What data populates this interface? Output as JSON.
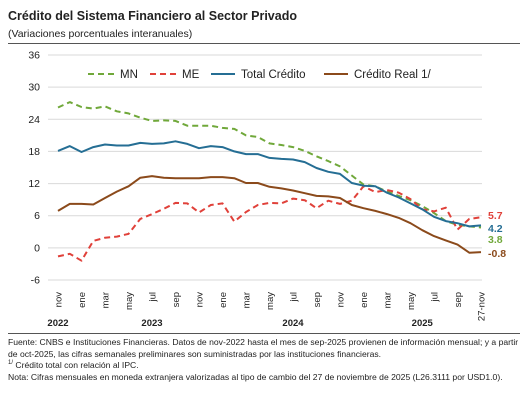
{
  "header": {
    "title": "Crédito del Sistema Financiero al Sector Privado",
    "subtitle": "(Variaciones porcentuales interanuales)"
  },
  "chart_data": {
    "type": "line",
    "title": "Crédito del Sistema Financiero al Sector Privado",
    "subtitle": "(Variaciones porcentuales interanuales)",
    "ylim": [
      -6,
      36
    ],
    "yticks": [
      36,
      30,
      24,
      18,
      12,
      6,
      0,
      -6
    ],
    "grid": true,
    "legend_position": "top",
    "x_tick_labels": [
      "nov",
      "ene",
      "mar",
      "may",
      "jul",
      "sep",
      "nov",
      "ene",
      "mar",
      "may",
      "jul",
      "sep",
      "nov",
      "ene",
      "mar",
      "may",
      "jul",
      "sep",
      "27-nov"
    ],
    "year_labels": [
      {
        "label": "2022",
        "at_month_index": 0
      },
      {
        "label": "2023",
        "at_month_index": 8
      },
      {
        "label": "2024",
        "at_month_index": 20
      },
      {
        "label": "2025",
        "at_month_index": 31
      }
    ],
    "months": [
      "nov-2022",
      "dic-2022",
      "ene-2023",
      "feb-2023",
      "mar-2023",
      "abr-2023",
      "may-2023",
      "jun-2023",
      "jul-2023",
      "ago-2023",
      "sep-2023",
      "oct-2023",
      "nov-2023",
      "dic-2023",
      "ene-2024",
      "feb-2024",
      "mar-2024",
      "abr-2024",
      "may-2024",
      "jun-2024",
      "jul-2024",
      "ago-2024",
      "sep-2024",
      "oct-2024",
      "nov-2024",
      "dic-2024",
      "ene-2025",
      "feb-2025",
      "mar-2025",
      "abr-2025",
      "may-2025",
      "jun-2025",
      "jul-2025",
      "ago-2025",
      "sep-2025",
      "oct-2025",
      "27-nov-2025"
    ],
    "series": [
      {
        "name": "MN",
        "color": "#70a83a",
        "dash": "dashed",
        "end_label": "3.8",
        "values": [
          26.2,
          27.2,
          26.3,
          26.0,
          26.4,
          25.5,
          25.1,
          24.3,
          23.7,
          23.8,
          23.7,
          22.8,
          22.8,
          22.8,
          22.4,
          22.2,
          21.0,
          20.7,
          19.5,
          19.2,
          18.8,
          18.1,
          17.1,
          16.2,
          15.2,
          13.5,
          11.8,
          11.5,
          10.5,
          9.7,
          8.9,
          7.8,
          6.5,
          5.0,
          4.3,
          4.0,
          3.8
        ]
      },
      {
        "name": "ME",
        "color": "#e0413a",
        "dash": "dashed",
        "end_label": "5.7",
        "values": [
          -1.6,
          -1.1,
          -2.4,
          1.3,
          1.9,
          2.1,
          2.6,
          5.4,
          6.3,
          7.3,
          8.4,
          8.3,
          6.6,
          8.0,
          8.3,
          4.9,
          6.7,
          8.0,
          8.4,
          8.3,
          9.2,
          8.9,
          7.4,
          8.8,
          8.2,
          8.8,
          11.5,
          10.4,
          10.8,
          10.3,
          9.1,
          7.2,
          6.8,
          7.5,
          3.4,
          5.4,
          5.7
        ]
      },
      {
        "name": "Total Crédito",
        "color": "#256e94",
        "dash": "solid",
        "end_label": "4.2",
        "values": [
          18.1,
          19.0,
          17.9,
          18.8,
          19.3,
          19.1,
          19.1,
          19.6,
          19.4,
          19.5,
          19.9,
          19.4,
          18.6,
          19.0,
          18.8,
          18.0,
          17.5,
          17.5,
          16.8,
          16.6,
          16.5,
          16.0,
          14.9,
          14.2,
          13.8,
          12.1,
          11.6,
          11.5,
          10.3,
          9.4,
          8.3,
          7.2,
          5.8,
          5.0,
          4.6,
          4.0,
          4.2
        ]
      },
      {
        "name": "Crédito Real 1/",
        "color": "#8b4a1b",
        "dash": "solid",
        "end_label": "-0.8",
        "values": [
          6.9,
          8.2,
          8.2,
          8.1,
          9.3,
          10.5,
          11.5,
          13.1,
          13.4,
          13.1,
          13.0,
          13.0,
          13.0,
          13.2,
          13.2,
          13.0,
          12.1,
          12.1,
          11.4,
          11.1,
          10.7,
          10.2,
          9.7,
          9.6,
          9.3,
          8.0,
          7.4,
          6.9,
          6.3,
          5.6,
          4.6,
          3.3,
          2.2,
          1.4,
          0.6,
          -0.9,
          -0.8
        ]
      }
    ]
  },
  "notes": {
    "source": "Fuente: CNBS e Instituciones Financieras. Datos de nov-2022 hasta el mes de sep-2025 provienen de información mensual; y a partir de oct-2025, las cifras semanales preliminares son suministradas por las instituciones financieras.",
    "footnote_mark": "1/",
    "footnote": "Crédito total con relación al IPC.",
    "note": "Nota: Cifras mensuales en moneda extranjera valorizadas al tipo de cambio del 27 de noviembre de 2025 (L26.3111 por USD1.0)."
  }
}
